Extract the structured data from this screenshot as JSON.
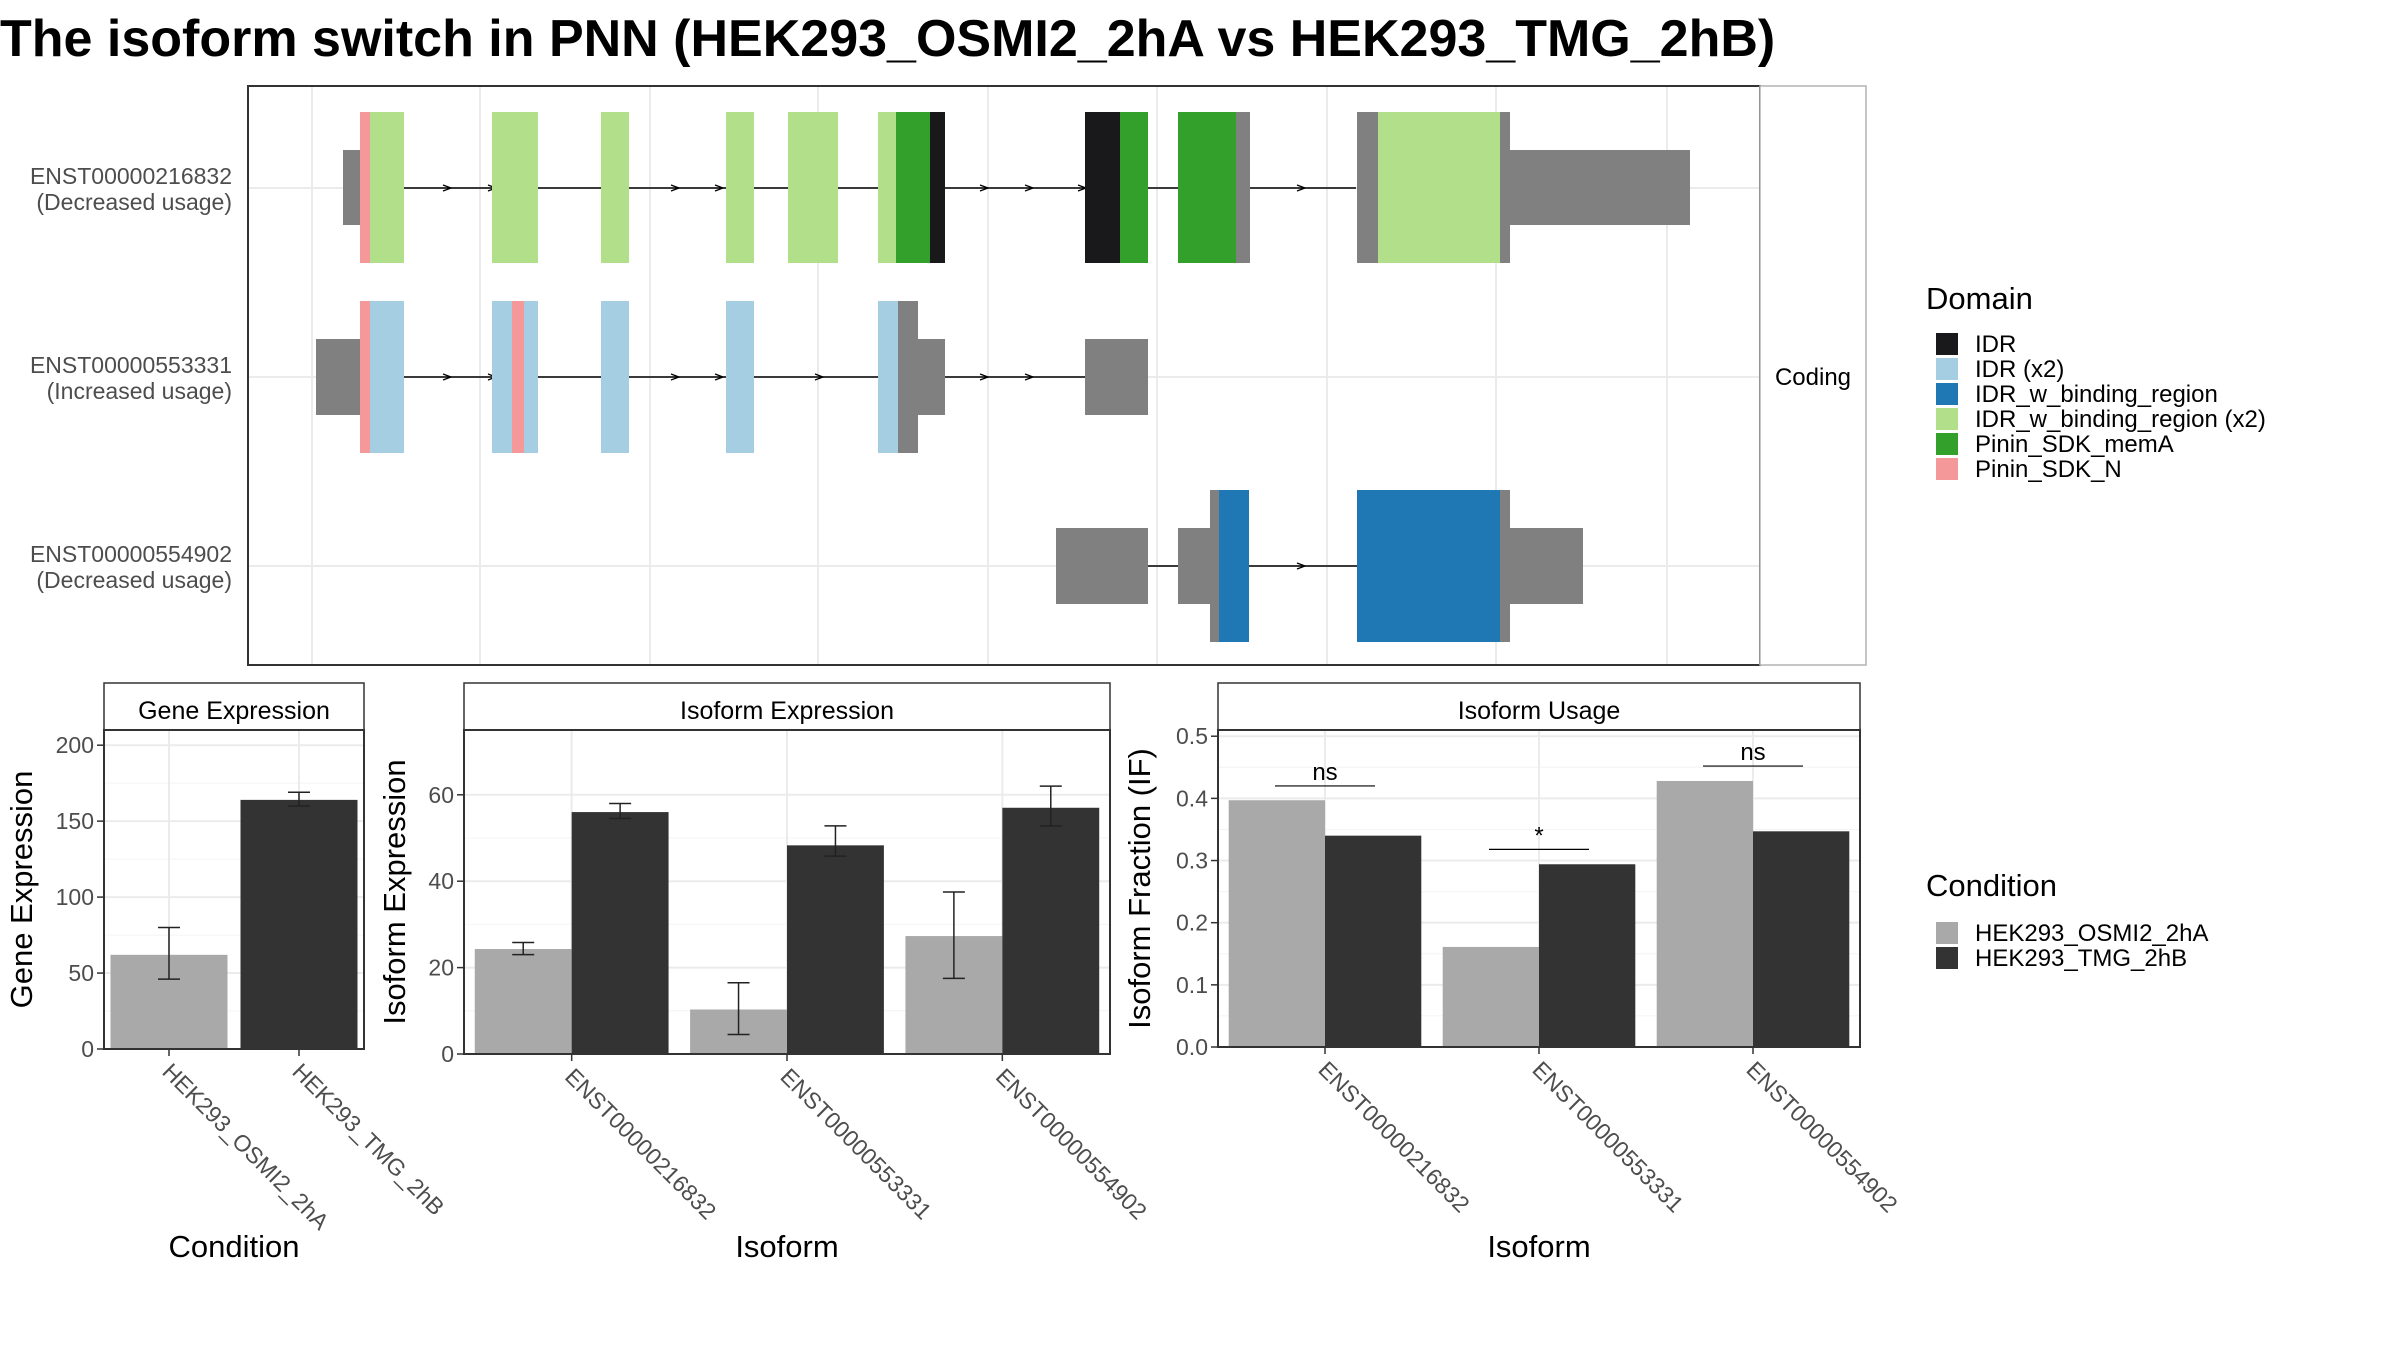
{
  "title": "The isoform switch in PNN (HEK293_OSMI2_2hA vs HEK293_TMG_2hB)",
  "colors": {
    "IDR": "#19191b",
    "IDR (x2)": "#a6cee3",
    "IDR_w_binding_region": "#1f78b4",
    "IDR_w_binding_region (x2)": "#b2df8a",
    "Pinin_SDK_memA": "#33a02c",
    "Pinin_SDK_N": "#f49899",
    "utr": "#808080",
    "cond_a": "#a9a9a9",
    "cond_b": "#333333",
    "grid": "#ebebeb",
    "frame": "#333333"
  },
  "structure": {
    "facet_label": "Coding",
    "isoforms": [
      {
        "id": "ENST00000216832",
        "note": "(Decreased usage)"
      },
      {
        "id": "ENST00000553331",
        "note": "(Increased usage)"
      },
      {
        "id": "ENST00000554902",
        "note": "(Decreased usage)"
      }
    ]
  },
  "legend_domain": {
    "title": "Domain",
    "items": [
      "IDR",
      "IDR (x2)",
      "IDR_w_binding_region",
      "IDR_w_binding_region (x2)",
      "Pinin_SDK_memA",
      "Pinin_SDK_N"
    ]
  },
  "legend_condition": {
    "title": "Condition",
    "items": [
      "HEK293_OSMI2_2hA",
      "HEK293_TMG_2hB"
    ]
  },
  "chart_data": [
    {
      "type": "bar",
      "panel_title": "Gene Expression",
      "xlabel": "Condition",
      "ylabel": "Gene Expression",
      "ylim": [
        0,
        210
      ],
      "yticks": [
        0,
        50,
        100,
        150,
        200
      ],
      "categories": [
        "HEK293_OSMI2_2hA",
        "HEK293_TMG_2hB"
      ],
      "series": [
        {
          "name": "HEK293_OSMI2_2hA",
          "values": [
            62,
            null
          ],
          "err_low": [
            46,
            null
          ],
          "err_high": [
            80,
            null
          ]
        },
        {
          "name": "HEK293_TMG_2hB",
          "values": [
            null,
            164
          ],
          "err_low": [
            null,
            160
          ],
          "err_high": [
            null,
            169
          ]
        }
      ]
    },
    {
      "type": "bar",
      "panel_title": "Isoform Expression",
      "xlabel": "Isoform",
      "ylabel": "Isoform Expression",
      "ylim": [
        0,
        75
      ],
      "yticks": [
        0,
        20,
        40,
        60
      ],
      "categories": [
        "ENST00000216832",
        "ENST00000553331",
        "ENST00000554902"
      ],
      "series": [
        {
          "name": "HEK293_OSMI2_2hA",
          "values": [
            24.3,
            10.3,
            27.3
          ],
          "err_low": [
            23.0,
            4.5,
            17.5
          ],
          "err_high": [
            25.8,
            16.5,
            37.5
          ]
        },
        {
          "name": "HEK293_TMG_2hB",
          "values": [
            56.0,
            48.3,
            57.0
          ],
          "err_low": [
            54.5,
            45.8,
            52.8
          ],
          "err_high": [
            58.0,
            52.8,
            62.0
          ]
        }
      ]
    },
    {
      "type": "bar",
      "panel_title": "Isoform Usage",
      "xlabel": "Isoform",
      "ylabel": "Isoform Fraction (IF)",
      "ylim": [
        0,
        0.51
      ],
      "yticks": [
        0.0,
        0.1,
        0.2,
        0.3,
        0.4,
        0.5
      ],
      "categories": [
        "ENST00000216832",
        "ENST00000553331",
        "ENST00000554902"
      ],
      "series": [
        {
          "name": "HEK293_OSMI2_2hA",
          "values": [
            0.397,
            0.161,
            0.428
          ]
        },
        {
          "name": "HEK293_TMG_2hB",
          "values": [
            0.34,
            0.294,
            0.347
          ]
        }
      ],
      "significance": [
        {
          "label": "ns",
          "y": 0.42
        },
        {
          "label": "*",
          "y": 0.318
        },
        {
          "label": "ns",
          "y": 0.452
        }
      ]
    }
  ]
}
